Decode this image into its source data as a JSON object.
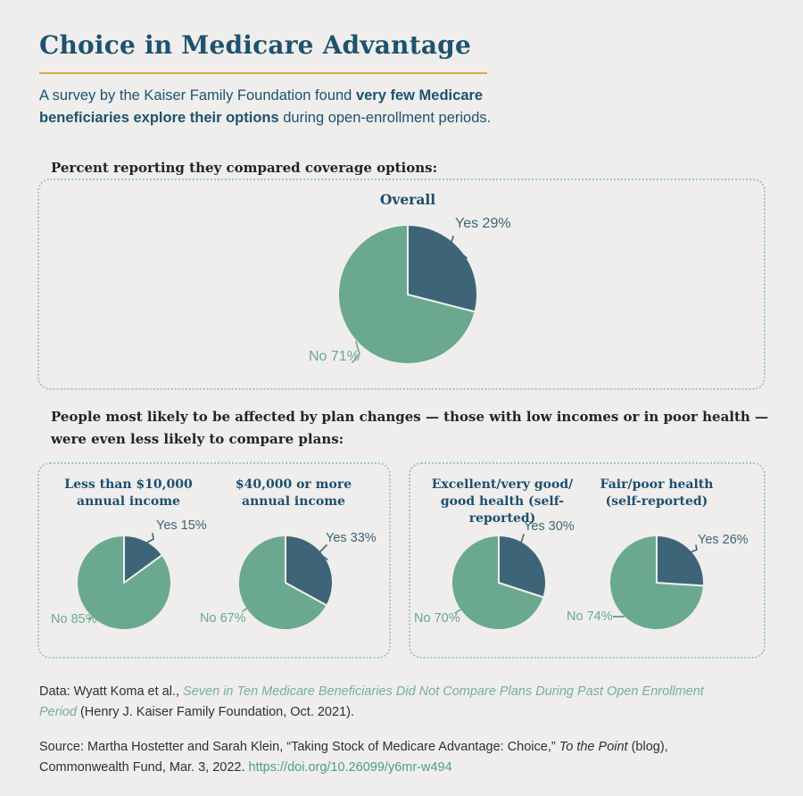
{
  "header": {
    "title": "Choice in Medicare Advantage",
    "subtitle_prefix": "A survey by the Kaiser Family Foundation found ",
    "subtitle_bold": "very few Medicare beneficiaries explore their options",
    "subtitle_suffix": " during open-enrollment periods."
  },
  "sections": {
    "overall_heading": "Percent reporting they compared coverage options:",
    "subgroups_heading_line1": "People most likely to be affected by plan changes — those with low incomes or in poor health —",
    "subgroups_heading_line2": "were even less likely to compare plans:"
  },
  "chart_data": [
    {
      "type": "pie",
      "title": "Overall",
      "title_lines": [
        "Overall"
      ],
      "unit": "percent",
      "series": [
        {
          "label": "Yes",
          "value": 29
        },
        {
          "label": "No",
          "value": 71
        }
      ]
    },
    {
      "type": "pie",
      "title": "Less than $10,000 annual income",
      "title_lines": [
        "Less than $10,000",
        "annual income"
      ],
      "unit": "percent",
      "series": [
        {
          "label": "Yes",
          "value": 15
        },
        {
          "label": "No",
          "value": 85
        }
      ]
    },
    {
      "type": "pie",
      "title": "$40,000 or more annual income",
      "title_lines": [
        "$40,000 or more",
        "annual income"
      ],
      "unit": "percent",
      "series": [
        {
          "label": "Yes",
          "value": 33
        },
        {
          "label": "No",
          "value": 67
        }
      ]
    },
    {
      "type": "pie",
      "title": "Excellent/very good/good health (self-reported)",
      "title_lines": [
        "Excellent/very good/",
        "good health (self-reported)"
      ],
      "unit": "percent",
      "series": [
        {
          "label": "Yes",
          "value": 30
        },
        {
          "label": "No",
          "value": 70
        }
      ]
    },
    {
      "type": "pie",
      "title": "Fair/poor health (self-reported)",
      "title_lines": [
        "Fair/poor health",
        "(self-reported)"
      ],
      "unit": "percent",
      "series": [
        {
          "label": "Yes",
          "value": 26
        },
        {
          "label": "No",
          "value": 74
        }
      ]
    }
  ],
  "footnotes": {
    "data_prefix": "Data: Wyatt Koma et al., ",
    "data_report_title": "Seven in Ten Medicare Beneficiaries Did Not Compare Plans During Past Open Enrollment Period",
    "data_suffix": " (Henry J. Kaiser Family Foundation, Oct. 2021).",
    "source_prefix": "Source: Martha Hostetter and Sarah Klein, “Taking Stock of Medicare Advantage: Choice,” ",
    "source_blog": "To the Point",
    "source_middle": " (blog), Commonwealth Fund, Mar. 3, 2022. ",
    "source_link": "https://doi.org/10.26099/y6mr-w494"
  },
  "colors": {
    "yes_slice": "#3d6577",
    "no_slice": "#6ba890",
    "heading_navy": "#1d5270",
    "pie_title_navy": "#1d4e70",
    "gold_rule": "#d6a945",
    "dotted_border": "#a3cabb",
    "link_teal": "#4f9e86",
    "report_link_green": "#74b098",
    "background": "#efeeec"
  }
}
